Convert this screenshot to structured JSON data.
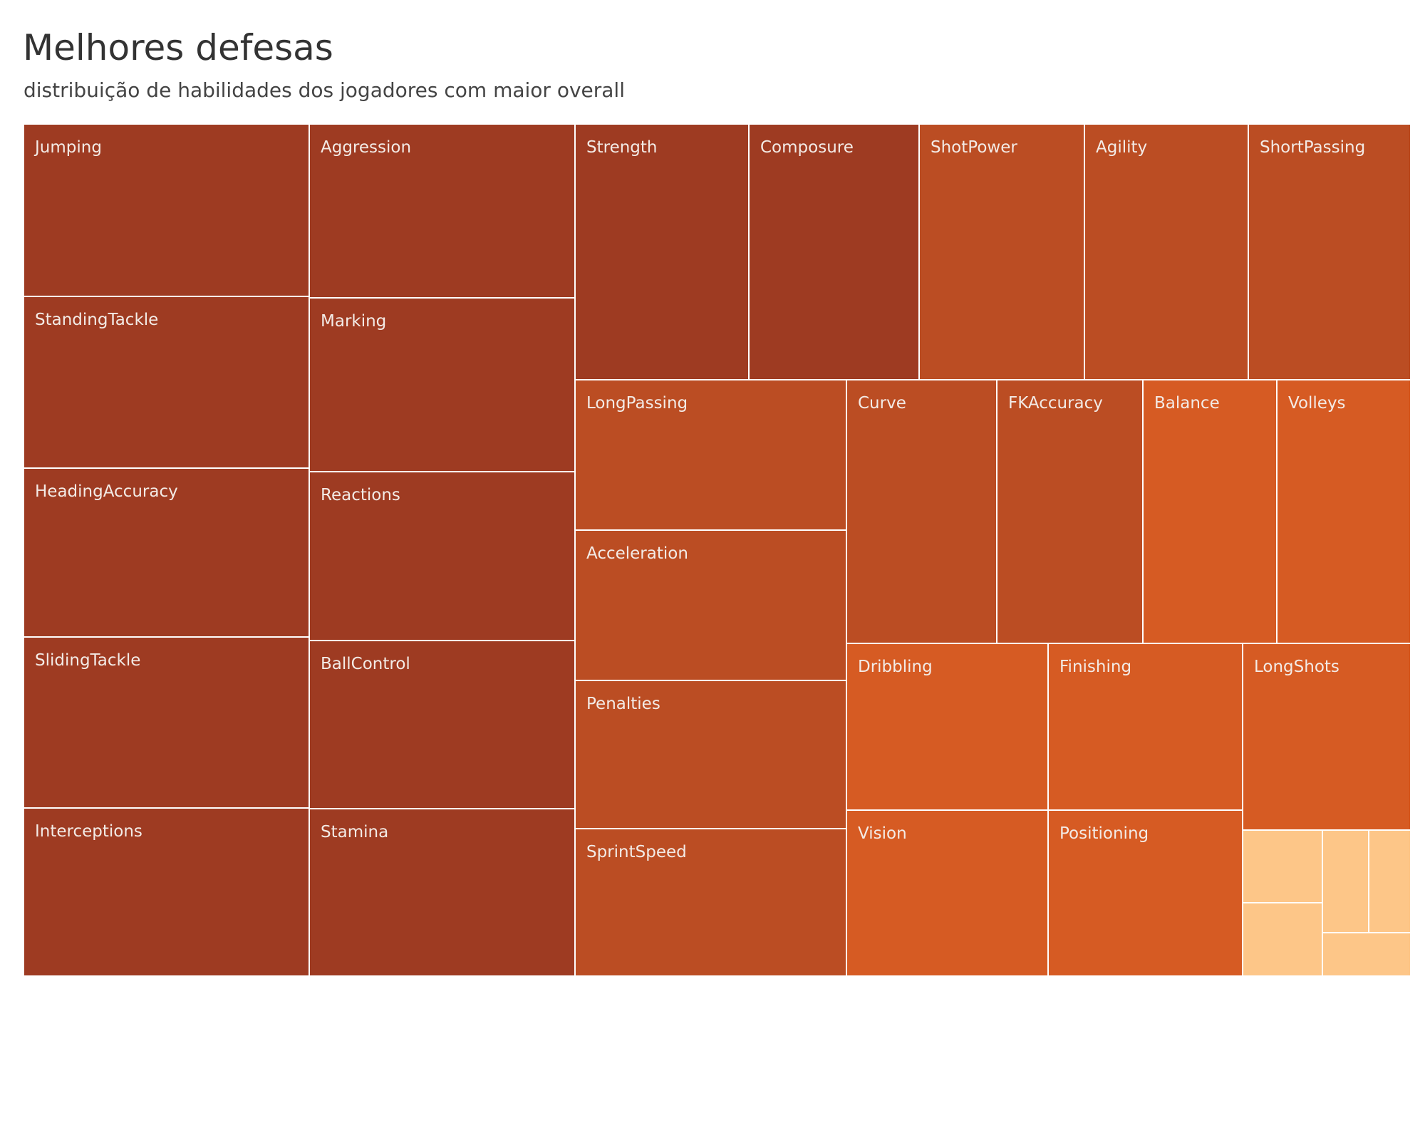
{
  "chart_data": {
    "type": "treemap",
    "title": "Melhores defesas",
    "subtitle": "distribuição de habilidades dos jogadores com maior overall",
    "color_scale": {
      "dark": "#9e3b22",
      "mid": "#bb4d23",
      "bright": "#d65b23",
      "light": "#fdc688"
    },
    "cells": [
      {
        "label": "Jumping",
        "tier": "dark"
      },
      {
        "label": "StandingTackle",
        "tier": "dark"
      },
      {
        "label": "HeadingAccuracy",
        "tier": "dark"
      },
      {
        "label": "SlidingTackle",
        "tier": "dark"
      },
      {
        "label": "Interceptions",
        "tier": "dark"
      },
      {
        "label": "Aggression",
        "tier": "dark"
      },
      {
        "label": "Marking",
        "tier": "dark"
      },
      {
        "label": "Reactions",
        "tier": "dark"
      },
      {
        "label": "BallControl",
        "tier": "dark"
      },
      {
        "label": "Stamina",
        "tier": "dark"
      },
      {
        "label": "Strength",
        "tier": "dark"
      },
      {
        "label": "Composure",
        "tier": "dark"
      },
      {
        "label": "ShotPower",
        "tier": "mid"
      },
      {
        "label": "Agility",
        "tier": "mid"
      },
      {
        "label": "ShortPassing",
        "tier": "mid"
      },
      {
        "label": "LongPassing",
        "tier": "mid"
      },
      {
        "label": "Acceleration",
        "tier": "mid"
      },
      {
        "label": "Penalties",
        "tier": "mid"
      },
      {
        "label": "SprintSpeed",
        "tier": "mid"
      },
      {
        "label": "Curve",
        "tier": "mid"
      },
      {
        "label": "FKAccuracy",
        "tier": "mid"
      },
      {
        "label": "Balance",
        "tier": "bright"
      },
      {
        "label": "Volleys",
        "tier": "bright"
      },
      {
        "label": "Dribbling",
        "tier": "bright"
      },
      {
        "label": "Finishing",
        "tier": "bright"
      },
      {
        "label": "LongShots",
        "tier": "bright"
      },
      {
        "label": "Vision",
        "tier": "bright"
      },
      {
        "label": "Positioning",
        "tier": "bright"
      },
      {
        "label": "",
        "tier": "light"
      },
      {
        "label": "",
        "tier": "light"
      },
      {
        "label": "",
        "tier": "light"
      },
      {
        "label": "",
        "tier": "light"
      },
      {
        "label": "",
        "tier": "light"
      }
    ]
  }
}
